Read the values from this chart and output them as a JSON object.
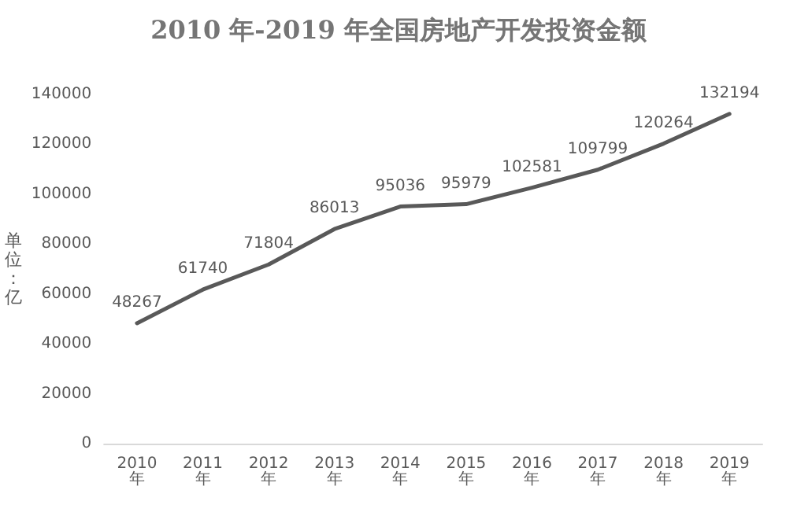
{
  "chart_data": {
    "type": "line",
    "title": "2010 年-2019 年全国房地产开发投资金额",
    "ylabel": "单位：亿",
    "categories": [
      "2010年",
      "2011年",
      "2012年",
      "2013年",
      "2014年",
      "2015年",
      "2016年",
      "2017年",
      "2018年",
      "2019年"
    ],
    "series": [
      {
        "color": "#595959",
        "values": [
          48267,
          61740,
          71804,
          86013,
          95036,
          95979,
          102581,
          109799,
          120264,
          132194
        ]
      }
    ],
    "ylim": [
      0,
      140000
    ],
    "yticks": [
      0,
      20000,
      40000,
      60000,
      80000,
      100000,
      120000,
      140000
    ],
    "data_labels": true,
    "grid": false,
    "marker": "none",
    "line_style": "solid"
  }
}
